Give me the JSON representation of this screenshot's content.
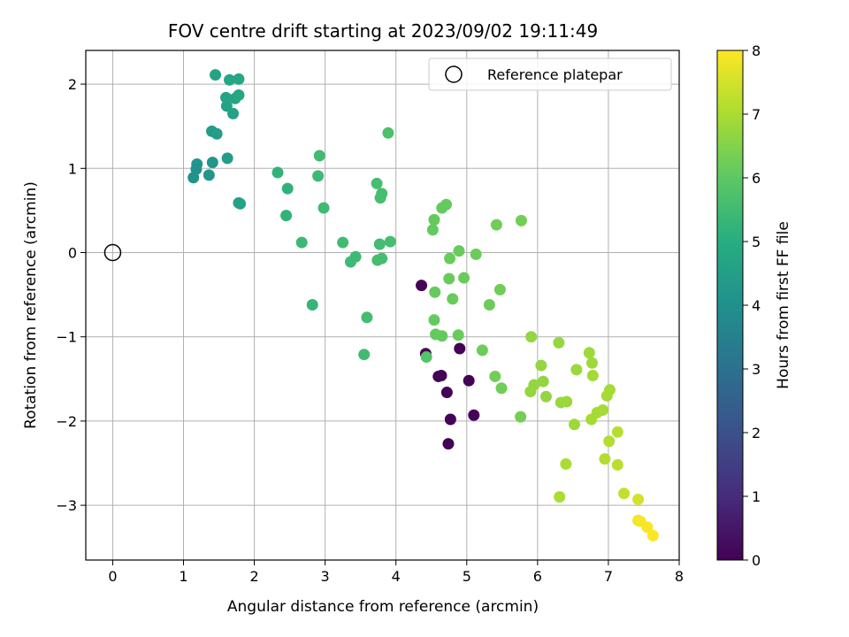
{
  "chart_data": {
    "type": "scatter",
    "title": "FOV centre drift starting at 2023/09/02 19:11:49",
    "xlabel": "Angular distance from reference (arcmin)",
    "ylabel": "Rotation from reference (arcmin)",
    "xlim": [
      -0.38,
      8.0
    ],
    "ylim": [
      -3.65,
      2.4
    ],
    "x_ticks": [
      0,
      1,
      2,
      3,
      4,
      5,
      6,
      7,
      8
    ],
    "x_tick_labels": [
      "0",
      "1",
      "2",
      "3",
      "4",
      "5",
      "6",
      "7",
      "8"
    ],
    "y_ticks": [
      -3,
      -2,
      -1,
      0,
      1,
      2
    ],
    "y_tick_labels": [
      "−3",
      "−2",
      "−1",
      "0",
      "1",
      "2"
    ],
    "grid": true,
    "legend": {
      "position": "top-right",
      "entries": [
        "Reference platepar"
      ]
    },
    "reference_point": {
      "x": 0,
      "y": 0,
      "marker": "open-circle"
    },
    "colorbar": {
      "label": "Hours from first FF file",
      "range": [
        0,
        8
      ],
      "ticks": [
        0,
        1,
        2,
        3,
        4,
        5,
        6,
        7,
        8
      ],
      "tick_labels": [
        "0",
        "1",
        "2",
        "3",
        "4",
        "5",
        "6",
        "7",
        "8"
      ],
      "colormap": "viridis"
    },
    "points": [
      {
        "x": 4.36,
        "y": -0.39,
        "c": 0.05
      },
      {
        "x": 4.42,
        "y": -1.2,
        "c": 0.05
      },
      {
        "x": 4.6,
        "y": -1.47,
        "c": 0.05
      },
      {
        "x": 4.64,
        "y": -1.46,
        "c": 0.05
      },
      {
        "x": 4.72,
        "y": -1.66,
        "c": 0.05
      },
      {
        "x": 4.77,
        "y": -1.98,
        "c": 0.05
      },
      {
        "x": 4.74,
        "y": -2.27,
        "c": 0.05
      },
      {
        "x": 4.9,
        "y": -1.14,
        "c": 0.05
      },
      {
        "x": 5.03,
        "y": -1.52,
        "c": 0.05
      },
      {
        "x": 5.1,
        "y": -1.93,
        "c": 0.05
      },
      {
        "x": 1.45,
        "y": 2.11,
        "c": 4.7
      },
      {
        "x": 1.65,
        "y": 2.05,
        "c": 4.75
      },
      {
        "x": 1.78,
        "y": 2.06,
        "c": 4.75
      },
      {
        "x": 1.6,
        "y": 1.84,
        "c": 4.7
      },
      {
        "x": 1.73,
        "y": 1.83,
        "c": 4.7
      },
      {
        "x": 1.78,
        "y": 1.87,
        "c": 4.75
      },
      {
        "x": 1.61,
        "y": 1.74,
        "c": 4.65
      },
      {
        "x": 1.7,
        "y": 1.65,
        "c": 4.6
      },
      {
        "x": 1.4,
        "y": 1.44,
        "c": 4.4
      },
      {
        "x": 1.47,
        "y": 1.41,
        "c": 4.4
      },
      {
        "x": 1.62,
        "y": 1.12,
        "c": 4.4
      },
      {
        "x": 1.41,
        "y": 1.07,
        "c": 4.2
      },
      {
        "x": 1.19,
        "y": 1.05,
        "c": 4.15
      },
      {
        "x": 1.18,
        "y": 0.99,
        "c": 4.1
      },
      {
        "x": 1.36,
        "y": 0.92,
        "c": 4.2
      },
      {
        "x": 1.14,
        "y": 0.89,
        "c": 4.05
      },
      {
        "x": 1.78,
        "y": 0.59,
        "c": 4.6
      },
      {
        "x": 1.8,
        "y": 0.58,
        "c": 4.6
      },
      {
        "x": 2.33,
        "y": 0.95,
        "c": 5.2
      },
      {
        "x": 2.47,
        "y": 0.76,
        "c": 5.2
      },
      {
        "x": 2.45,
        "y": 0.44,
        "c": 5.2
      },
      {
        "x": 2.67,
        "y": 0.12,
        "c": 5.4
      },
      {
        "x": 2.82,
        "y": -0.62,
        "c": 5.3
      },
      {
        "x": 2.92,
        "y": 1.15,
        "c": 5.5
      },
      {
        "x": 2.9,
        "y": 0.91,
        "c": 5.45
      },
      {
        "x": 2.98,
        "y": 0.53,
        "c": 5.45
      },
      {
        "x": 3.25,
        "y": 0.12,
        "c": 5.5
      },
      {
        "x": 3.36,
        "y": -0.11,
        "c": 5.45
      },
      {
        "x": 3.43,
        "y": -0.05,
        "c": 5.45
      },
      {
        "x": 3.55,
        "y": -1.21,
        "c": 5.5
      },
      {
        "x": 3.59,
        "y": -0.77,
        "c": 5.55
      },
      {
        "x": 3.73,
        "y": 0.82,
        "c": 5.6
      },
      {
        "x": 3.8,
        "y": 0.7,
        "c": 5.6
      },
      {
        "x": 3.78,
        "y": 0.65,
        "c": 5.6
      },
      {
        "x": 3.77,
        "y": 0.1,
        "c": 5.55
      },
      {
        "x": 3.92,
        "y": 0.13,
        "c": 5.6
      },
      {
        "x": 3.74,
        "y": -0.09,
        "c": 5.55
      },
      {
        "x": 3.8,
        "y": -0.07,
        "c": 5.6
      },
      {
        "x": 3.89,
        "y": 1.42,
        "c": 5.7
      },
      {
        "x": 4.43,
        "y": -1.24,
        "c": 5.85
      },
      {
        "x": 4.52,
        "y": 0.27,
        "c": 6.1
      },
      {
        "x": 4.54,
        "y": 0.39,
        "c": 6.1
      },
      {
        "x": 4.65,
        "y": 0.53,
        "c": 6.1
      },
      {
        "x": 4.71,
        "y": 0.57,
        "c": 6.1
      },
      {
        "x": 4.55,
        "y": -0.47,
        "c": 6.1
      },
      {
        "x": 4.54,
        "y": -0.8,
        "c": 6.1
      },
      {
        "x": 4.56,
        "y": -0.97,
        "c": 6.1
      },
      {
        "x": 4.65,
        "y": -0.99,
        "c": 6.1
      },
      {
        "x": 4.76,
        "y": -0.07,
        "c": 6.15
      },
      {
        "x": 4.75,
        "y": -0.31,
        "c": 6.15
      },
      {
        "x": 4.8,
        "y": -0.55,
        "c": 6.15
      },
      {
        "x": 4.89,
        "y": 0.02,
        "c": 6.15
      },
      {
        "x": 4.96,
        "y": -0.3,
        "c": 6.15
      },
      {
        "x": 4.88,
        "y": -0.98,
        "c": 6.15
      },
      {
        "x": 5.13,
        "y": -0.02,
        "c": 6.2
      },
      {
        "x": 5.22,
        "y": -1.16,
        "c": 6.2
      },
      {
        "x": 5.32,
        "y": -0.62,
        "c": 6.2
      },
      {
        "x": 5.42,
        "y": 0.33,
        "c": 6.25
      },
      {
        "x": 5.47,
        "y": -0.44,
        "c": 6.25
      },
      {
        "x": 5.4,
        "y": -1.47,
        "c": 6.25
      },
      {
        "x": 5.49,
        "y": -1.61,
        "c": 6.25
      },
      {
        "x": 5.77,
        "y": 0.38,
        "c": 6.3
      },
      {
        "x": 5.76,
        "y": -1.95,
        "c": 6.3
      },
      {
        "x": 5.91,
        "y": -1.0,
        "c": 6.7
      },
      {
        "x": 6.05,
        "y": -1.34,
        "c": 6.7
      },
      {
        "x": 5.95,
        "y": -1.57,
        "c": 6.7
      },
      {
        "x": 5.9,
        "y": -1.65,
        "c": 6.7
      },
      {
        "x": 6.08,
        "y": -1.53,
        "c": 6.7
      },
      {
        "x": 6.12,
        "y": -1.71,
        "c": 6.7
      },
      {
        "x": 6.3,
        "y": -1.07,
        "c": 6.75
      },
      {
        "x": 6.33,
        "y": -1.78,
        "c": 6.8
      },
      {
        "x": 6.41,
        "y": -1.77,
        "c": 6.8
      },
      {
        "x": 6.55,
        "y": -1.39,
        "c": 6.8
      },
      {
        "x": 6.52,
        "y": -2.04,
        "c": 6.85
      },
      {
        "x": 6.4,
        "y": -2.51,
        "c": 7.0
      },
      {
        "x": 6.31,
        "y": -2.9,
        "c": 7.0
      },
      {
        "x": 6.73,
        "y": -1.19,
        "c": 6.85
      },
      {
        "x": 6.77,
        "y": -1.31,
        "c": 6.85
      },
      {
        "x": 6.78,
        "y": -1.46,
        "c": 6.9
      },
      {
        "x": 6.76,
        "y": -1.98,
        "c": 6.95
      },
      {
        "x": 6.84,
        "y": -1.9,
        "c": 6.95
      },
      {
        "x": 6.92,
        "y": -1.87,
        "c": 6.95
      },
      {
        "x": 6.98,
        "y": -1.7,
        "c": 6.95
      },
      {
        "x": 7.02,
        "y": -1.63,
        "c": 6.95
      },
      {
        "x": 7.01,
        "y": -2.24,
        "c": 7.1
      },
      {
        "x": 6.95,
        "y": -2.45,
        "c": 7.1
      },
      {
        "x": 7.13,
        "y": -2.13,
        "c": 7.15
      },
      {
        "x": 7.13,
        "y": -2.52,
        "c": 7.2
      },
      {
        "x": 7.22,
        "y": -2.86,
        "c": 7.3
      },
      {
        "x": 7.42,
        "y": -2.93,
        "c": 7.5
      },
      {
        "x": 7.42,
        "y": -3.18,
        "c": 7.85
      },
      {
        "x": 7.45,
        "y": -3.19,
        "c": 7.9
      },
      {
        "x": 7.55,
        "y": -3.26,
        "c": 7.95
      },
      {
        "x": 7.63,
        "y": -3.36,
        "c": 8.0
      }
    ]
  }
}
